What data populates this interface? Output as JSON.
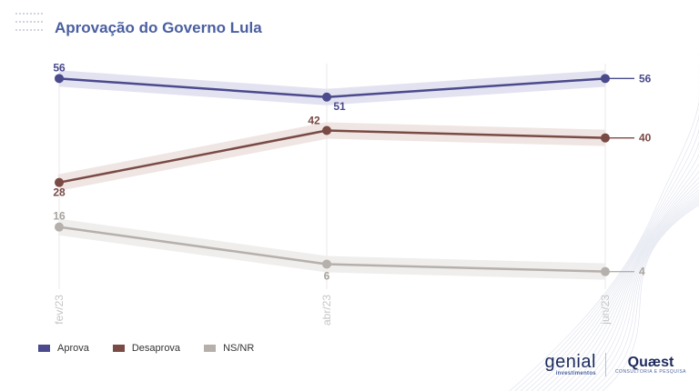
{
  "title": "Aprovação do Governo Lula",
  "legend": [
    {
      "label": "Aprova",
      "color": "#4a4a8c"
    },
    {
      "label": "Desaprova",
      "color": "#7a4a45"
    },
    {
      "label": "NS/NR",
      "color": "#b5b0ab"
    }
  ],
  "logos": {
    "genial_main": "genial",
    "genial_sub": "investimentos",
    "quaest_main": "Quæst",
    "quaest_sub": "CONSULTORIA E PESQUISA"
  },
  "chart_data": {
    "type": "line",
    "title": "Aprovação do Governo Lula",
    "categories": [
      "fev/23",
      "abr/23",
      "jun/23"
    ],
    "series": [
      {
        "name": "Aprova",
        "values": [
          56,
          51,
          56
        ],
        "color": "#4a4a8c",
        "band": "#e3e2f1"
      },
      {
        "name": "Desaprova",
        "values": [
          28,
          42,
          40
        ],
        "color": "#7a4a45",
        "band": "#efe5e3"
      },
      {
        "name": "NS/NR",
        "values": [
          16,
          6,
          4
        ],
        "color": "#b5b0ab",
        "band": "#efeeec"
      }
    ],
    "ylim": [
      0,
      60
    ],
    "grid": false,
    "legend_position": "bottom-left"
  }
}
